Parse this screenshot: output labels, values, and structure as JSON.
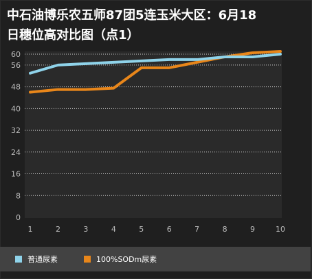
{
  "title": {
    "line1": "中石油博乐农五师87团5连玉米大区：6月18",
    "line2": "日穗位高对比图（点1）"
  },
  "colors": {
    "background": "#1f1f1f",
    "plot_bg": "#2a2a2a",
    "grid": "#cfcfcf",
    "axis_text": "#bdbdbd",
    "series1": "#8fd3ea",
    "series2": "#e8861a",
    "legend_bg": "#424242"
  },
  "chart_data": {
    "type": "line",
    "x": [
      1,
      2,
      3,
      4,
      5,
      6,
      7,
      8,
      9,
      10
    ],
    "ylim": [
      0,
      60
    ],
    "yticks": [
      0,
      8,
      16,
      24,
      32,
      40,
      48,
      56,
      60
    ],
    "grid": "horizontal dotted",
    "legend_position": "bottom",
    "series": [
      {
        "name": "普通尿素",
        "values": [
          53,
          56,
          56.5,
          57,
          57.5,
          58,
          58,
          59,
          59,
          60
        ]
      },
      {
        "name": "100%SODm尿素",
        "values": [
          46,
          47,
          47,
          47.5,
          55,
          55,
          57,
          59,
          60.5,
          61
        ]
      }
    ]
  }
}
